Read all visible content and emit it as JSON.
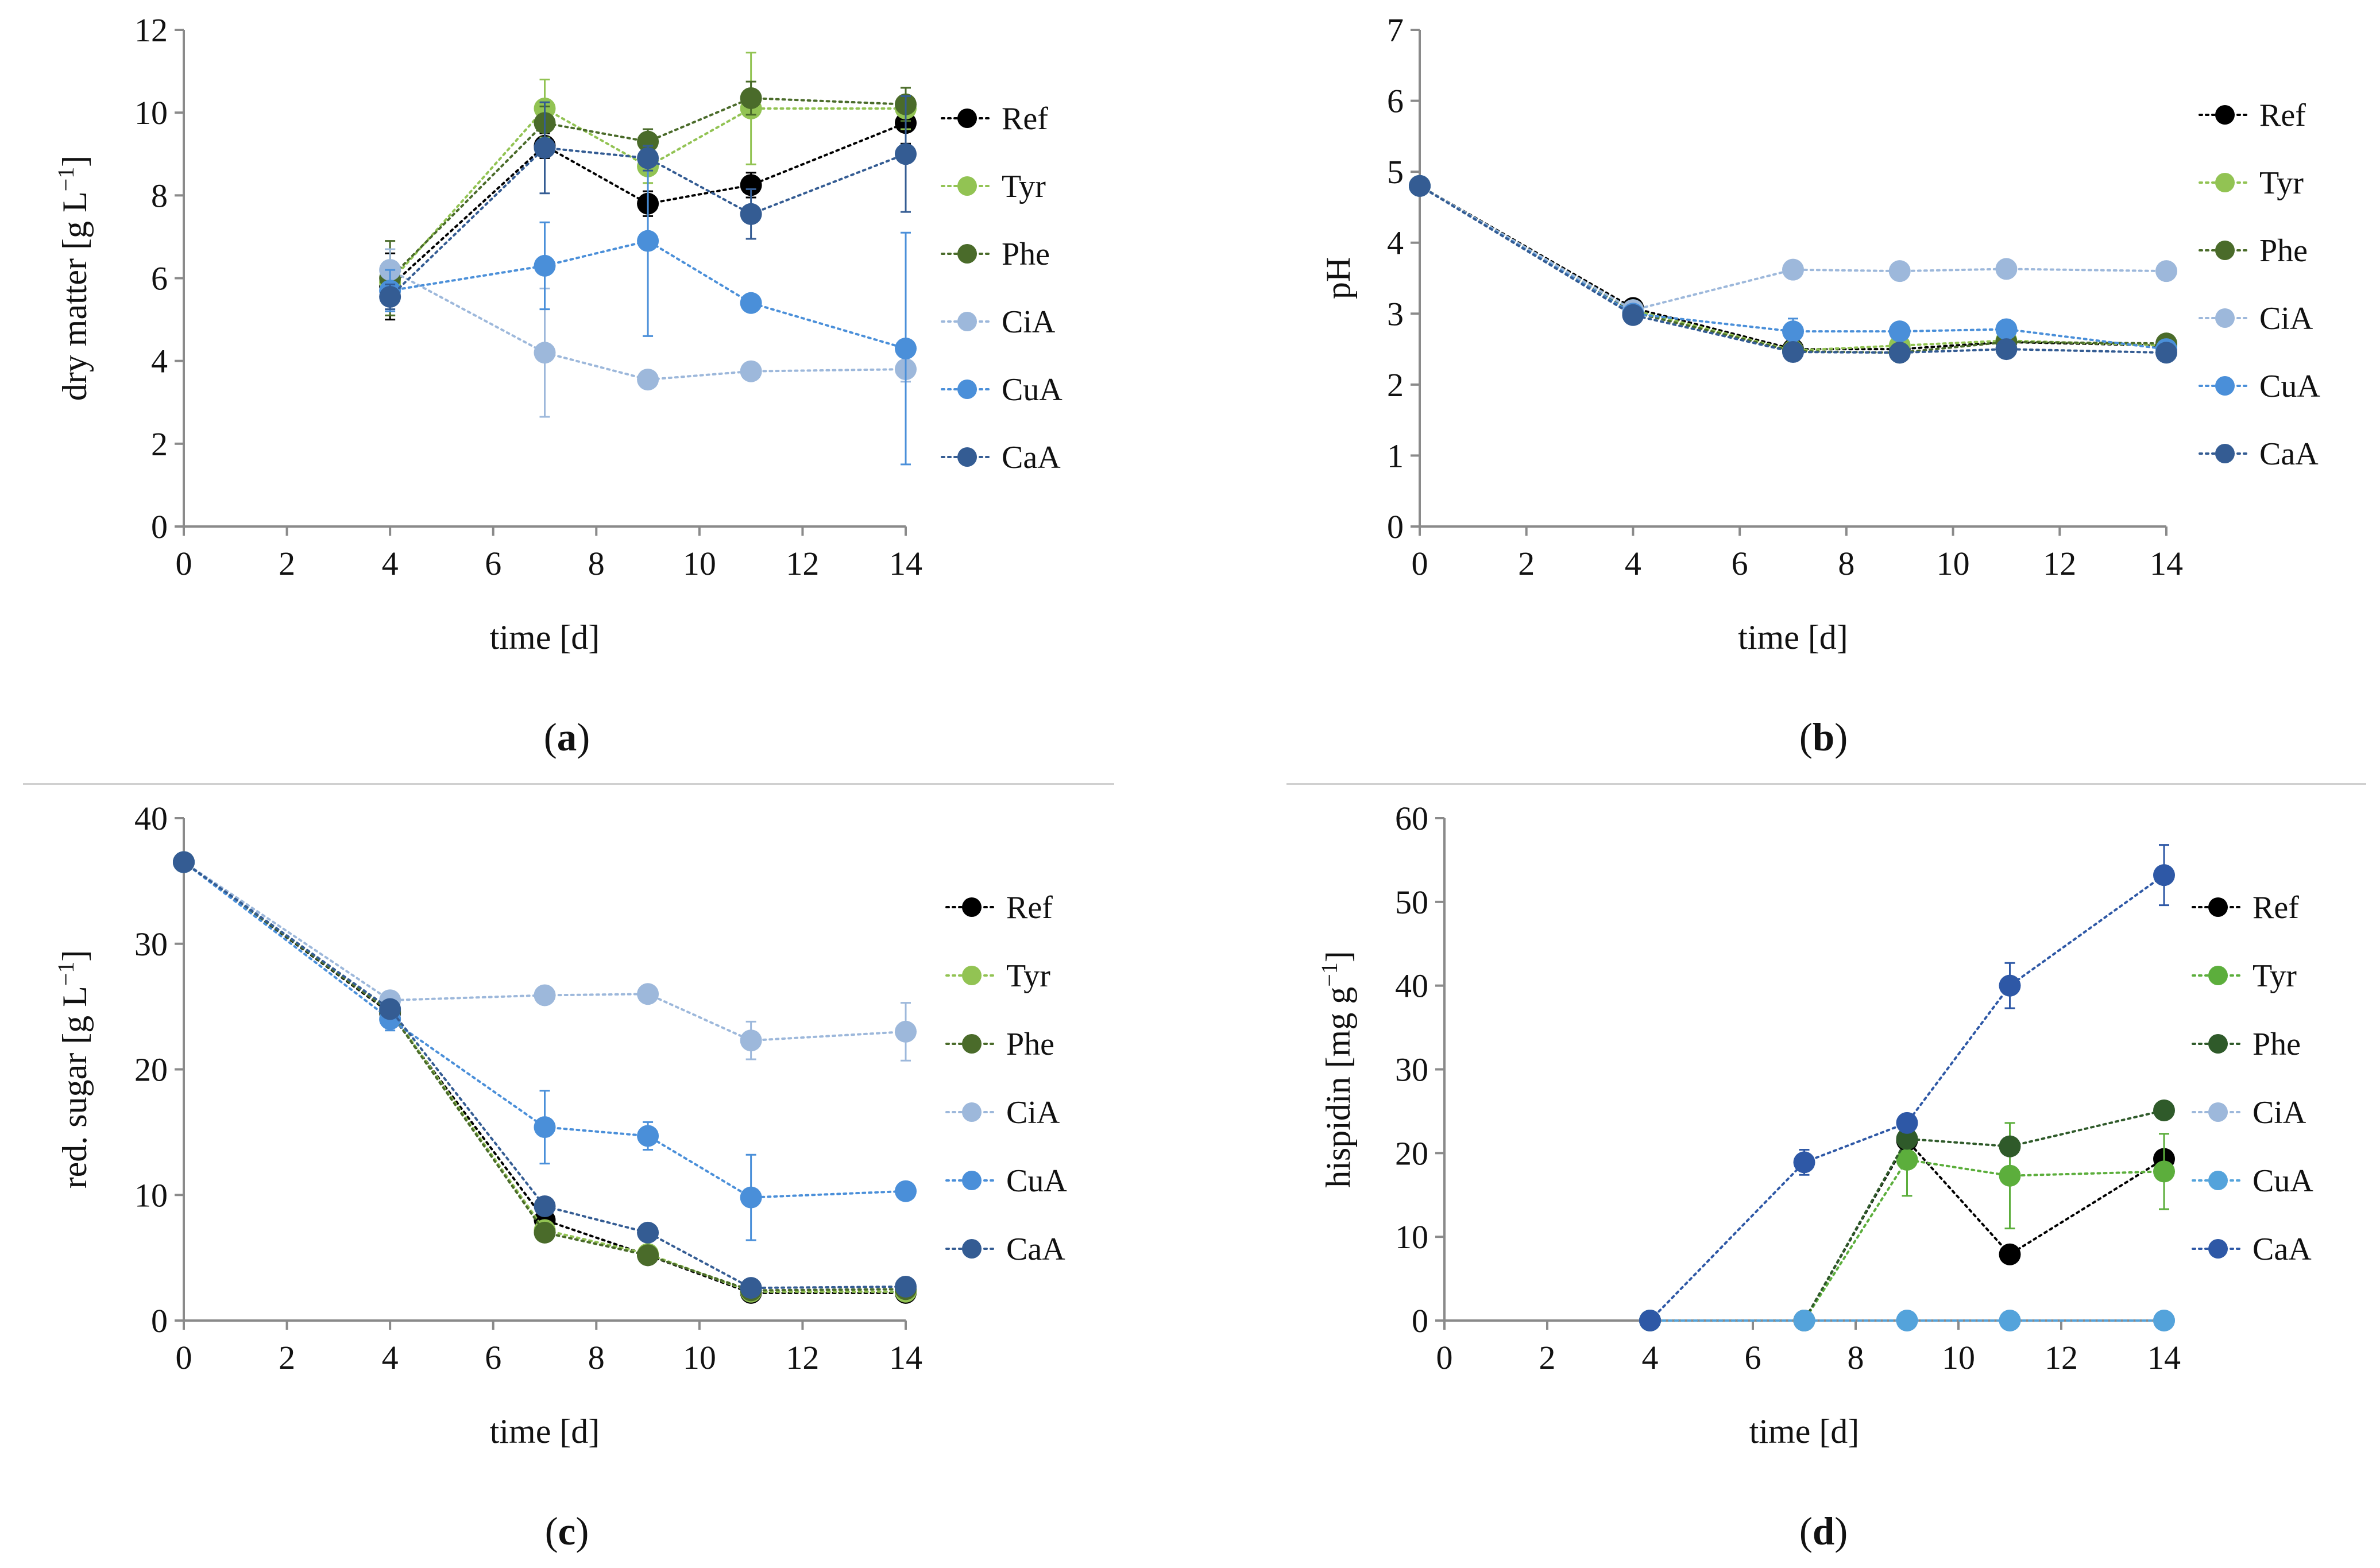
{
  "colors": {
    "Ref": "#000000",
    "Tyr": "#92c353",
    "Phe": "#4a6b2a",
    "CiA": "#9db8db",
    "CuA": "#4a8fd9",
    "CaA": "#345c93",
    "Tyr_d": "#5cae3c",
    "Phe_d": "#2f5a2a",
    "CuA_d": "#54a3db",
    "CaA_d": "#2e58a6"
  },
  "captions": {
    "a": "a",
    "b": "b",
    "c": "c",
    "d": "d"
  },
  "chart_data": [
    {
      "id": "a",
      "type": "line",
      "xlabel": "time [d]",
      "ylabel": "dry matter [g L",
      "ylabel_sup": "−1",
      "ylabel_end": "]",
      "xlim": [
        0,
        14
      ],
      "ylim": [
        0,
        12
      ],
      "xticks": [
        0,
        2,
        4,
        6,
        8,
        10,
        12,
        14
      ],
      "yticks": [
        0,
        2,
        4,
        6,
        8,
        10,
        12
      ],
      "legend": "right",
      "series": [
        {
          "name": "Ref",
          "color": "#000000",
          "x": [
            4,
            7,
            9,
            11,
            14
          ],
          "y": [
            5.8,
            9.2,
            7.8,
            8.25,
            9.75
          ],
          "err": [
            0.8,
            0.3,
            0.3,
            0.3,
            0.5
          ]
        },
        {
          "name": "Tyr",
          "color": "#92c353",
          "x": [
            4,
            7,
            9,
            11,
            14
          ],
          "y": [
            5.9,
            10.1,
            8.7,
            10.1,
            10.1
          ],
          "err": [
            0.8,
            0.7,
            0.4,
            1.35,
            0.5
          ]
        },
        {
          "name": "Phe",
          "color": "#4a6b2a",
          "x": [
            4,
            7,
            9,
            11,
            14
          ],
          "y": [
            6.0,
            9.75,
            9.3,
            10.35,
            10.2
          ],
          "err": [
            0.9,
            0.4,
            0.3,
            0.4,
            0.4
          ]
        },
        {
          "name": "CiA",
          "color": "#9db8db",
          "x": [
            4,
            7,
            9,
            11,
            14
          ],
          "y": [
            6.2,
            4.2,
            3.55,
            3.75,
            3.8
          ],
          "err": [
            0.5,
            1.55,
            0.2,
            0.2,
            0.3
          ]
        },
        {
          "name": "CuA",
          "color": "#4a8fd9",
          "x": [
            4,
            7,
            9,
            11,
            14
          ],
          "y": [
            5.7,
            6.3,
            6.9,
            5.4,
            4.3
          ],
          "err": [
            0.5,
            1.05,
            2.3,
            0.2,
            2.8
          ]
        },
        {
          "name": "CaA",
          "color": "#345c93",
          "x": [
            4,
            7,
            9,
            11,
            14
          ],
          "y": [
            5.55,
            9.15,
            8.9,
            7.55,
            9.0
          ],
          "err": [
            0.3,
            1.1,
            0.3,
            0.6,
            1.4
          ]
        }
      ]
    },
    {
      "id": "b",
      "type": "line",
      "xlabel": "time [d]",
      "ylabel": "pH",
      "ylabel_sup": "",
      "ylabel_end": "",
      "xlim": [
        0,
        14
      ],
      "ylim": [
        0,
        7
      ],
      "xticks": [
        0,
        2,
        4,
        6,
        8,
        10,
        12,
        14
      ],
      "yticks": [
        0,
        1,
        2,
        3,
        4,
        5,
        6,
        7
      ],
      "legend": "right",
      "series": [
        {
          "name": "Ref",
          "color": "#000000",
          "x": [
            0,
            4,
            7,
            9,
            11,
            14
          ],
          "y": [
            4.8,
            3.08,
            2.5,
            2.5,
            2.6,
            2.55
          ],
          "err": [
            0,
            0,
            0,
            0,
            0,
            0
          ]
        },
        {
          "name": "Tyr",
          "color": "#92c353",
          "x": [
            0,
            4,
            7,
            9,
            11,
            14
          ],
          "y": [
            4.8,
            3.05,
            2.48,
            2.55,
            2.62,
            2.55
          ],
          "err": [
            0,
            0,
            0,
            0,
            0,
            0
          ]
        },
        {
          "name": "Phe",
          "color": "#4a6b2a",
          "x": [
            0,
            4,
            7,
            9,
            11,
            14
          ],
          "y": [
            4.8,
            3.02,
            2.47,
            2.45,
            2.6,
            2.58
          ],
          "err": [
            0,
            0,
            0,
            0,
            0,
            0
          ]
        },
        {
          "name": "CiA",
          "color": "#9db8db",
          "x": [
            0,
            4,
            7,
            9,
            11,
            14
          ],
          "y": [
            4.8,
            3.05,
            3.62,
            3.6,
            3.63,
            3.6
          ],
          "err": [
            0,
            0,
            0,
            0,
            0,
            0
          ]
        },
        {
          "name": "CuA",
          "color": "#4a8fd9",
          "x": [
            0,
            4,
            7,
            9,
            11,
            14
          ],
          "y": [
            4.8,
            3.0,
            2.75,
            2.75,
            2.78,
            2.5
          ],
          "err": [
            0,
            0,
            0.18,
            0,
            0.1,
            0
          ]
        },
        {
          "name": "CaA",
          "color": "#345c93",
          "x": [
            0,
            4,
            7,
            9,
            11,
            14
          ],
          "y": [
            4.8,
            2.98,
            2.46,
            2.45,
            2.5,
            2.45
          ],
          "err": [
            0,
            0,
            0,
            0,
            0,
            0
          ]
        }
      ]
    },
    {
      "id": "c",
      "type": "line",
      "xlabel": "time [d]",
      "ylabel": "red. sugar [g L",
      "ylabel_sup": "−1",
      "ylabel_end": "]",
      "xlim": [
        0,
        14
      ],
      "ylim": [
        0,
        40
      ],
      "xticks": [
        0,
        2,
        4,
        6,
        8,
        10,
        12,
        14
      ],
      "yticks": [
        0,
        10,
        20,
        30,
        40
      ],
      "legend": "right",
      "series": [
        {
          "name": "Ref",
          "color": "#000000",
          "x": [
            0,
            4,
            7,
            9,
            11,
            14
          ],
          "y": [
            36.5,
            24.5,
            8.0,
            5.2,
            2.2,
            2.2
          ],
          "err": [
            0,
            0,
            0,
            0,
            0,
            0
          ]
        },
        {
          "name": "Tyr",
          "color": "#92c353",
          "x": [
            0,
            4,
            7,
            9,
            11,
            14
          ],
          "y": [
            36.5,
            24.7,
            7.2,
            5.3,
            2.3,
            2.3
          ],
          "err": [
            0,
            0,
            0,
            0,
            0,
            0
          ]
        },
        {
          "name": "Phe",
          "color": "#4a6b2a",
          "x": [
            0,
            4,
            7,
            9,
            11,
            14
          ],
          "y": [
            36.5,
            24.6,
            7.0,
            5.2,
            2.4,
            2.5
          ],
          "err": [
            0,
            0,
            0,
            0,
            0,
            0
          ]
        },
        {
          "name": "CiA",
          "color": "#9db8db",
          "x": [
            0,
            4,
            7,
            9,
            11,
            14
          ],
          "y": [
            36.5,
            25.5,
            25.9,
            26.0,
            22.3,
            23.0
          ],
          "err": [
            0,
            0,
            0,
            0,
            1.5,
            2.3
          ]
        },
        {
          "name": "CuA",
          "color": "#4a8fd9",
          "x": [
            0,
            4,
            7,
            9,
            11,
            14
          ],
          "y": [
            36.5,
            24.0,
            15.4,
            14.7,
            9.8,
            10.3
          ],
          "err": [
            0,
            0.9,
            2.9,
            1.1,
            3.4,
            0.4
          ]
        },
        {
          "name": "CaA",
          "color": "#345c93",
          "x": [
            0,
            4,
            7,
            9,
            11,
            14
          ],
          "y": [
            36.5,
            24.8,
            9.1,
            7.0,
            2.6,
            2.7
          ],
          "err": [
            0,
            0,
            0,
            0,
            0,
            0
          ]
        }
      ]
    },
    {
      "id": "d",
      "type": "line",
      "xlabel": "time [d]",
      "ylabel": "hispidin [mg g",
      "ylabel_sup": "−1",
      "ylabel_end": "]",
      "xlim": [
        0,
        14
      ],
      "ylim": [
        0,
        60
      ],
      "xticks": [
        0,
        2,
        4,
        6,
        8,
        10,
        12,
        14
      ],
      "yticks": [
        0,
        10,
        20,
        30,
        40,
        50,
        60
      ],
      "legend": "right",
      "series": [
        {
          "name": "Ref",
          "color": "#000000",
          "x": [
            4,
            7,
            9,
            11,
            14
          ],
          "y": [
            0,
            0,
            21.5,
            7.9,
            19.3
          ],
          "err": [
            0,
            0,
            0,
            0,
            0
          ]
        },
        {
          "name": "Tyr",
          "color": "#5cae3c",
          "x": [
            4,
            7,
            9,
            11,
            14
          ],
          "y": [
            0,
            0,
            19.2,
            17.3,
            17.8
          ],
          "err": [
            0,
            0,
            4.3,
            6.3,
            4.5
          ]
        },
        {
          "name": "Phe",
          "color": "#2f5a2a",
          "x": [
            4,
            7,
            9,
            11,
            14
          ],
          "y": [
            0,
            0,
            21.7,
            20.8,
            25.1
          ],
          "err": [
            0,
            0,
            0,
            0,
            0
          ]
        },
        {
          "name": "CiA",
          "color": "#9db8db",
          "x": [
            4,
            7,
            9,
            11,
            14
          ],
          "y": [
            0,
            0,
            0,
            0,
            0
          ],
          "err": [
            0,
            0,
            0,
            0,
            0
          ]
        },
        {
          "name": "CuA",
          "color": "#54a3db",
          "x": [
            4,
            7,
            9,
            11,
            14
          ],
          "y": [
            0,
            0,
            0,
            0,
            0
          ],
          "err": [
            0,
            0,
            0,
            0,
            0
          ]
        },
        {
          "name": "CaA",
          "color": "#2e58a6",
          "x": [
            4,
            7,
            9,
            11,
            14
          ],
          "y": [
            0,
            18.9,
            23.6,
            40.0,
            53.2
          ],
          "err": [
            0,
            1.5,
            1.0,
            2.7,
            3.6
          ]
        }
      ]
    }
  ]
}
